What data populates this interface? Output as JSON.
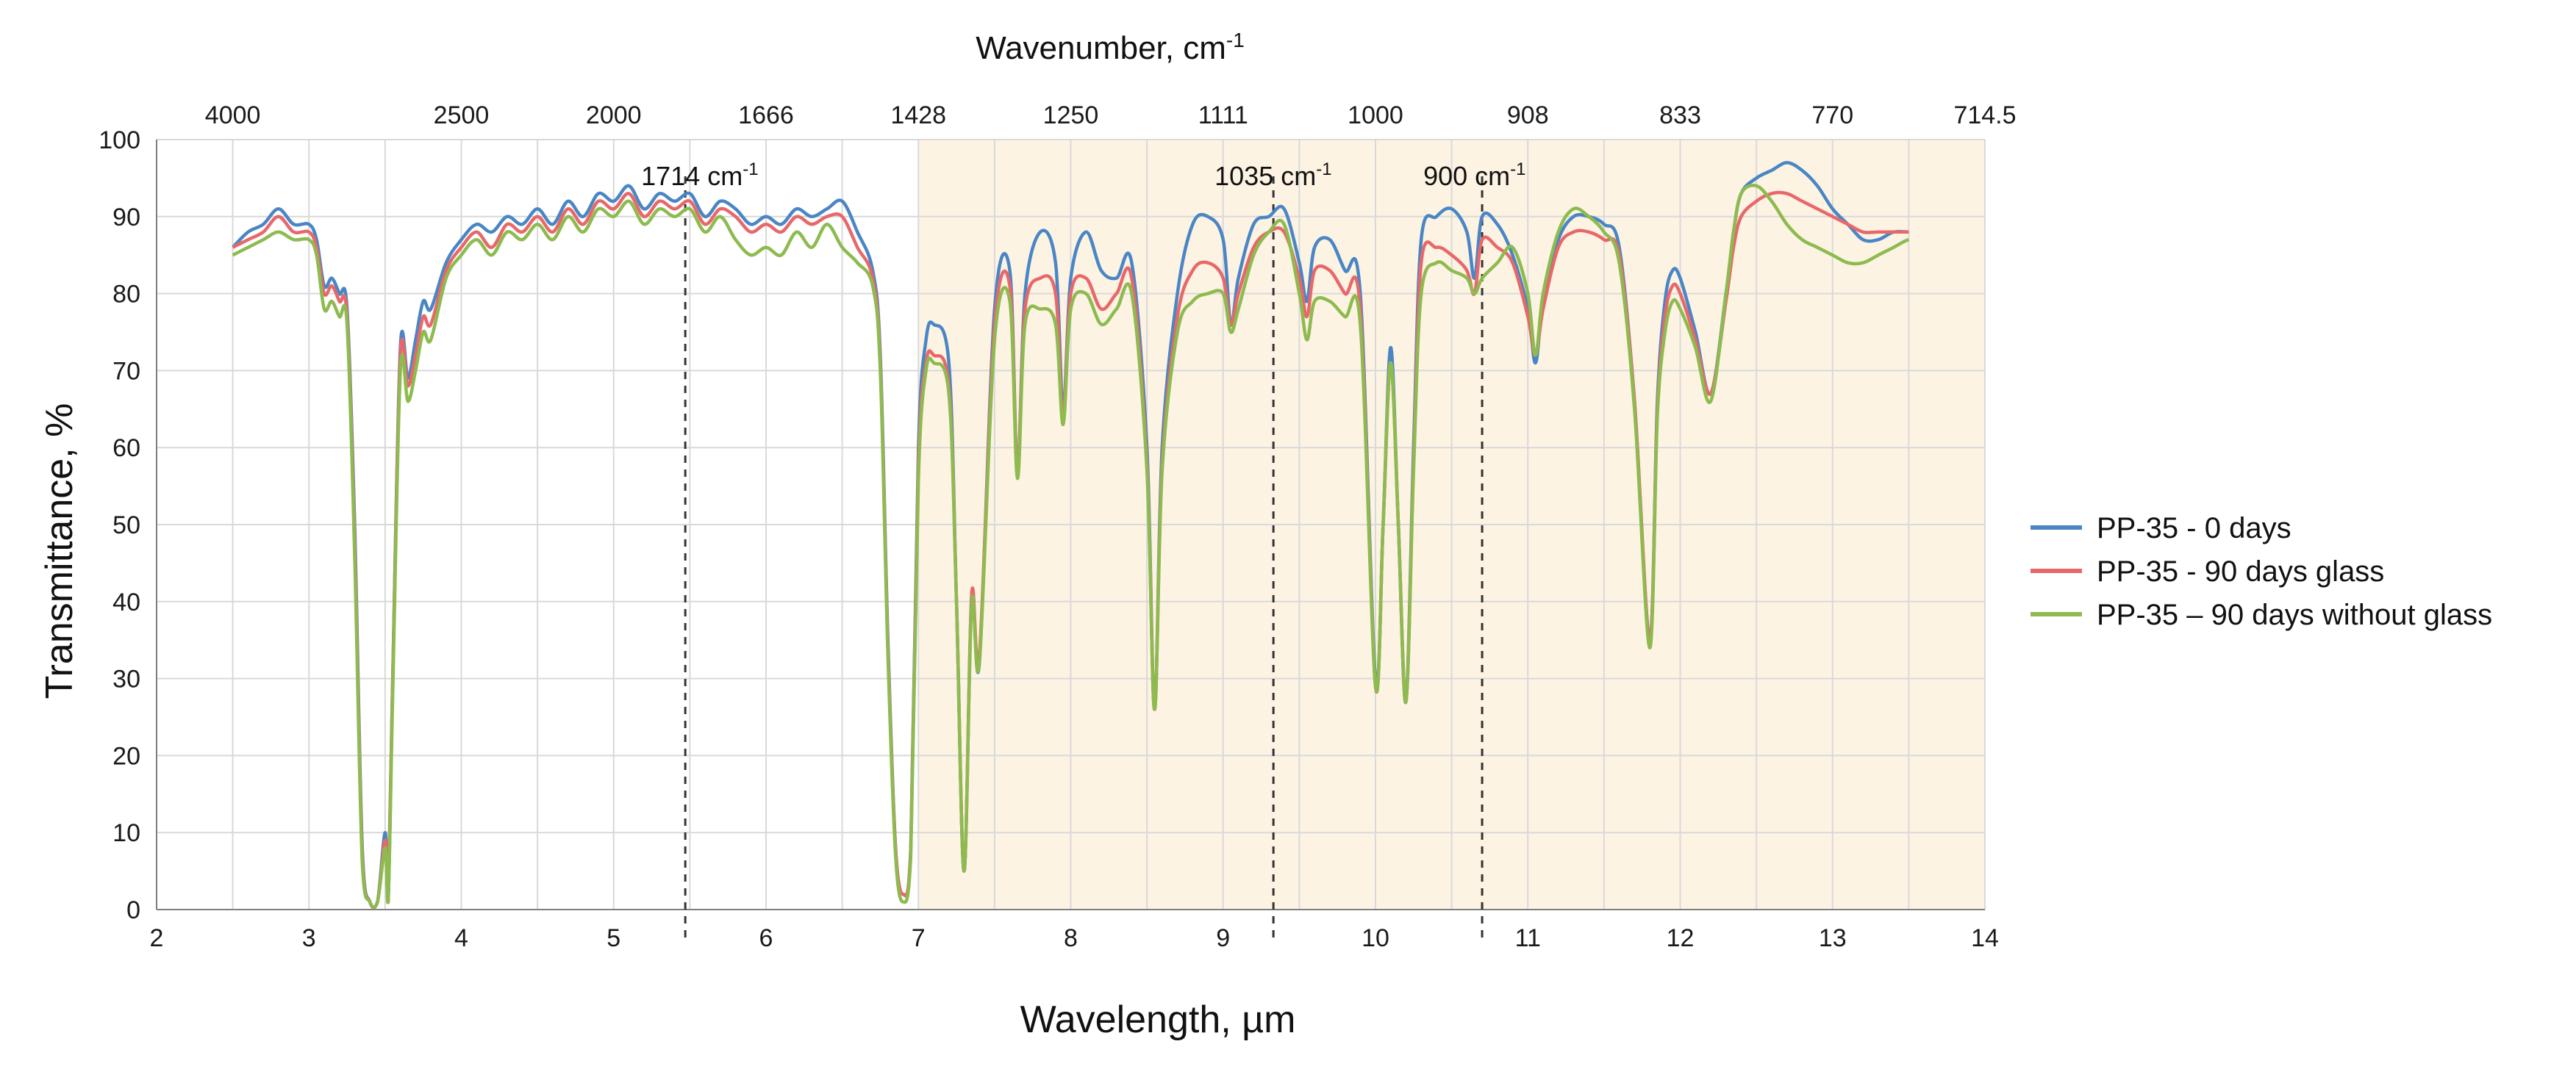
{
  "chart_data": {
    "type": "line",
    "xlabel": "Wavelength, µm",
    "ylabel": "Transmittance, %",
    "top_axis_title_main": "Wavenumber, cm",
    "top_axis_title_sup": "-1",
    "xlim": [
      2,
      14
    ],
    "ylim": [
      0,
      100
    ],
    "x_ticks": [
      "2",
      "3",
      "4",
      "5",
      "6",
      "7",
      "8",
      "9",
      "10",
      "11",
      "12",
      "13",
      "14"
    ],
    "y_ticks": [
      "0",
      "10",
      "20",
      "30",
      "40",
      "50",
      "60",
      "70",
      "80",
      "90",
      "100"
    ],
    "top_ticks": [
      {
        "label": "4000",
        "x": 2.5
      },
      {
        "label": "2500",
        "x": 4.0
      },
      {
        "label": "2000",
        "x": 5.0
      },
      {
        "label": "1666",
        "x": 6.0
      },
      {
        "label": "1428",
        "x": 7.0
      },
      {
        "label": "1250",
        "x": 8.0
      },
      {
        "label": "1111",
        "x": 9.0
      },
      {
        "label": "1000",
        "x": 10.0
      },
      {
        "label": "908",
        "x": 11.0
      },
      {
        "label": "833",
        "x": 12.0
      },
      {
        "label": "770",
        "x": 13.0
      },
      {
        "label": "714.5",
        "x": 14.0
      }
    ],
    "grid": true,
    "highlight_region": {
      "x_from": 7,
      "x_to": 14,
      "color": "#fdf3e3"
    },
    "annotations": [
      {
        "main": "1714 cm",
        "sup": "-1",
        "x": 5.47
      },
      {
        "main": "1035 cm",
        "sup": "-1",
        "x": 9.33
      },
      {
        "main": "900 cm",
        "sup": "-1",
        "x": 10.7
      }
    ],
    "legend_position": "right",
    "series": [
      {
        "name": "PP-35 - 0 days",
        "color": "#4a86c5"
      },
      {
        "name": "PP-35 - 90 days glass",
        "color": "#e8686a"
      },
      {
        "name": "PP-35 – 90 days without glass",
        "color": "#8dbb4f"
      }
    ],
    "x": [
      2.5,
      2.6,
      2.7,
      2.8,
      2.9,
      3.0,
      3.05,
      3.1,
      3.15,
      3.2,
      3.25,
      3.3,
      3.35,
      3.4,
      3.45,
      3.5,
      3.52,
      3.55,
      3.6,
      3.65,
      3.7,
      3.75,
      3.8,
      3.9,
      4.0,
      4.1,
      4.2,
      4.3,
      4.4,
      4.5,
      4.6,
      4.7,
      4.8,
      4.9,
      5.0,
      5.1,
      5.2,
      5.3,
      5.4,
      5.5,
      5.6,
      5.7,
      5.8,
      5.9,
      6.0,
      6.1,
      6.2,
      6.3,
      6.4,
      6.5,
      6.6,
      6.7,
      6.75,
      6.8,
      6.85,
      6.9,
      6.95,
      7.0,
      7.05,
      7.1,
      7.2,
      7.25,
      7.3,
      7.35,
      7.4,
      7.5,
      7.6,
      7.65,
      7.7,
      7.8,
      7.9,
      7.95,
      8.0,
      8.1,
      8.2,
      8.3,
      8.4,
      8.5,
      8.55,
      8.6,
      8.7,
      8.8,
      8.9,
      9.0,
      9.05,
      9.1,
      9.2,
      9.3,
      9.4,
      9.5,
      9.55,
      9.6,
      9.7,
      9.8,
      9.9,
      10.0,
      10.05,
      10.1,
      10.15,
      10.2,
      10.25,
      10.3,
      10.4,
      10.5,
      10.6,
      10.65,
      10.7,
      10.8,
      10.9,
      11.0,
      11.05,
      11.1,
      11.2,
      11.3,
      11.4,
      11.5,
      11.6,
      11.7,
      11.8,
      11.85,
      11.9,
      11.95,
      12.0,
      12.1,
      12.2,
      12.3,
      12.35,
      12.4,
      12.5,
      12.6,
      12.7,
      12.8,
      12.9,
      13.0,
      13.1,
      13.2,
      13.3,
      13.4,
      13.5,
      13.6,
      13.7,
      13.8,
      13.9,
      14.0
    ],
    "values": {
      "PP-35 - 0 days": [
        86,
        88,
        89,
        91,
        89,
        89,
        87,
        81,
        82,
        80,
        78,
        50,
        8,
        1,
        1,
        10,
        1,
        30,
        73,
        69,
        74,
        79,
        78,
        84,
        87,
        89,
        88,
        90,
        89,
        91,
        89,
        92,
        90,
        93,
        92,
        94,
        91,
        93,
        92,
        93,
        90,
        92,
        91,
        89,
        90,
        89,
        91,
        90,
        91,
        92,
        88,
        83,
        72,
        35,
        8,
        2,
        8,
        60,
        74,
        76,
        71,
        40,
        5,
        41,
        32,
        78,
        83,
        57,
        80,
        88,
        84,
        65,
        82,
        88,
        83,
        82,
        84,
        60,
        26,
        60,
        80,
        89,
        90,
        87,
        76,
        82,
        89,
        90,
        91,
        84,
        79,
        86,
        87,
        83,
        80,
        30,
        50,
        73,
        50,
        27,
        60,
        87,
        90,
        91,
        88,
        82,
        90,
        89,
        85,
        78,
        71,
        79,
        87,
        90,
        90,
        89,
        86,
        66,
        35,
        66,
        79,
        83,
        82,
        75,
        67,
        80,
        88,
        93,
        95,
        96,
        97,
        96,
        94,
        91,
        89,
        87,
        87,
        88,
        88,
        88
      ],
      "PP-35 - 90 days glass": [
        86,
        87,
        88,
        90,
        88,
        88,
        86,
        80,
        81,
        79,
        77,
        48,
        7,
        1,
        1,
        9,
        1,
        30,
        72,
        68,
        72,
        77,
        76,
        83,
        86,
        88,
        86,
        89,
        88,
        90,
        88,
        91,
        89,
        92,
        91,
        93,
        90,
        92,
        91,
        92,
        89,
        91,
        90,
        88,
        89,
        88,
        90,
        89,
        90,
        90,
        86,
        82,
        71,
        34,
        8,
        2,
        8,
        58,
        71,
        72,
        68,
        40,
        5,
        41,
        33,
        76,
        81,
        57,
        78,
        82,
        80,
        64,
        80,
        82,
        78,
        80,
        82,
        58,
        26,
        58,
        77,
        83,
        84,
        82,
        76,
        80,
        86,
        88,
        88,
        82,
        77,
        83,
        83,
        80,
        78,
        29,
        50,
        71,
        50,
        27,
        58,
        84,
        86,
        85,
        83,
        80,
        87,
        86,
        84,
        77,
        72,
        78,
        86,
        88,
        88,
        87,
        85,
        66,
        35,
        65,
        77,
        81,
        80,
        74,
        67,
        79,
        86,
        90,
        92,
        93,
        93,
        92,
        91,
        90,
        89,
        88,
        88,
        88,
        88,
        88
      ],
      "PP-35 – 90 days without glass": [
        85,
        86,
        87,
        88,
        87,
        87,
        85,
        78,
        79,
        77,
        76,
        46,
        6,
        1,
        1,
        8,
        1,
        28,
        70,
        66,
        70,
        75,
        74,
        82,
        85,
        87,
        85,
        88,
        87,
        89,
        87,
        90,
        88,
        91,
        90,
        92,
        89,
        91,
        90,
        91,
        88,
        90,
        87,
        85,
        86,
        85,
        88,
        86,
        89,
        86,
        84,
        81,
        70,
        33,
        7,
        1,
        7,
        56,
        70,
        71,
        67,
        40,
        5,
        40,
        32,
        74,
        79,
        56,
        76,
        78,
        76,
        63,
        78,
        80,
        76,
        78,
        80,
        57,
        26,
        57,
        75,
        79,
        80,
        80,
        75,
        78,
        85,
        88,
        89,
        80,
        74,
        79,
        79,
        77,
        76,
        29,
        50,
        71,
        50,
        27,
        57,
        80,
        84,
        83,
        82,
        80,
        82,
        84,
        86,
        80,
        72,
        80,
        88,
        91,
        90,
        88,
        84,
        65,
        34,
        64,
        75,
        79,
        78,
        73,
        66,
        80,
        88,
        93,
        94,
        92,
        89,
        87,
        86,
        85,
        84,
        84,
        85,
        86,
        87,
        87
      ]
    }
  }
}
